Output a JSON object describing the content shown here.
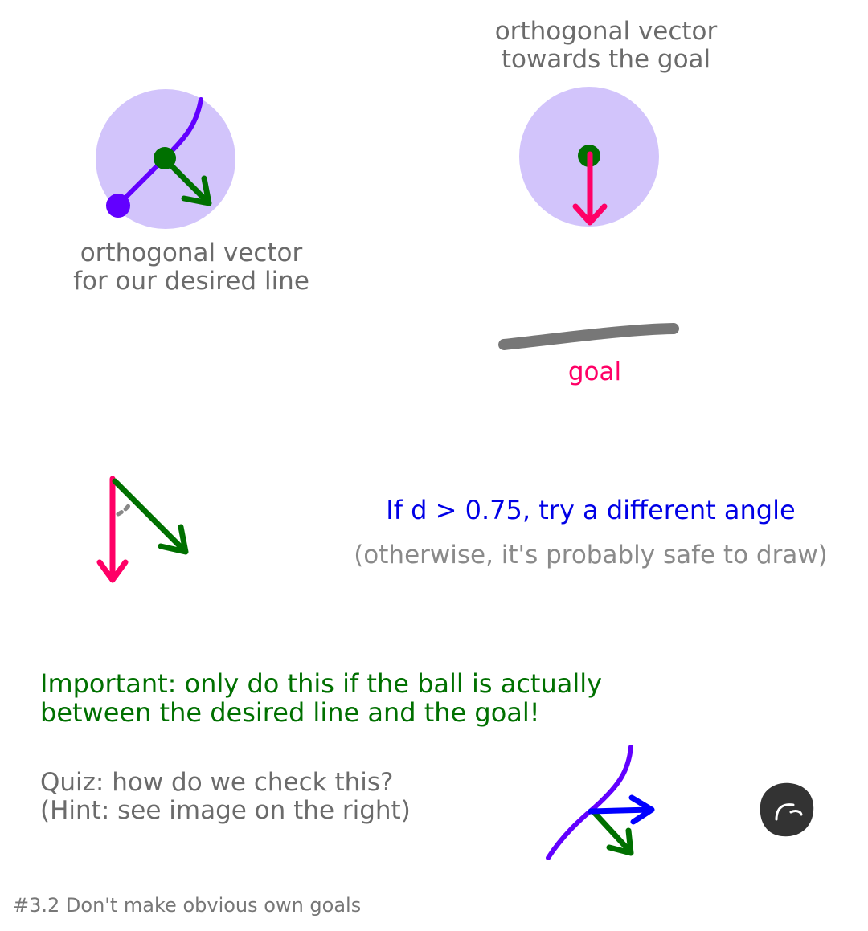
{
  "colors": {
    "ball_zone": "#d2c4fb",
    "desired_line": "#6200ff",
    "orthogonal_vector": "#007000",
    "goal_vector": "#ff0066",
    "goal_bar": "#777777",
    "check_vector": "#0000ff",
    "ball": "#333333",
    "rule_text": "#0000e6",
    "important_text": "#007000"
  },
  "labels": {
    "desired_line_caption": "orthogonal vector\nfor our desired line",
    "towards_goal_caption": "orthogonal vector\ntowards the goal",
    "goal": "goal",
    "rule": "If d > 0.75, try a different angle",
    "otherwise": "(otherwise, it's probably safe to draw)",
    "important": "Important: only do this if the ball is actually\nbetween the desired line and the goal!",
    "quiz": "Quiz: how do we check this?\n(Hint: see image on the right)",
    "footer": "#3.2 Don't make obvious own goals"
  }
}
